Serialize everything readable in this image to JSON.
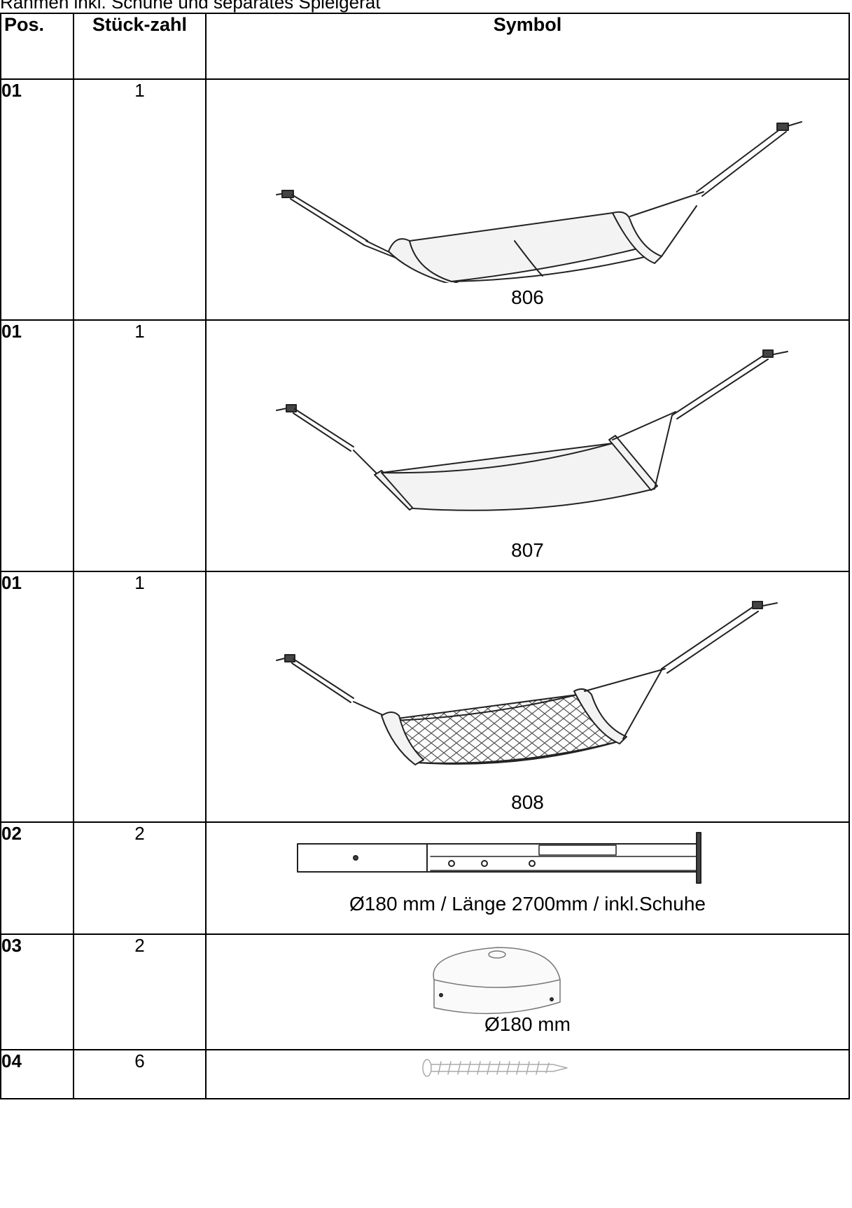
{
  "intro_text": "Rahmen inkl. Schuhe und separates Spielgerät",
  "table": {
    "headers": {
      "pos": "Pos.",
      "qty": "Stück-zahl",
      "symbol": "Symbol"
    },
    "rows": [
      {
        "pos": "01",
        "qty": "1",
        "label": "806",
        "icon": "hammock-fabric-drawing"
      },
      {
        "pos": "01",
        "qty": "1",
        "label": "807",
        "icon": "hammock-bar-drawing"
      },
      {
        "pos": "01",
        "qty": "1",
        "label": "808",
        "icon": "hammock-net-drawing"
      },
      {
        "pos": "02",
        "qty": "2",
        "label": "Ø180 mm / Länge 2700mm / inkl.Schuhe",
        "icon": "post-with-shoe-drawing"
      },
      {
        "pos": "03",
        "qty": "2",
        "label": "Ø180 mm",
        "icon": "post-cap-drawing"
      },
      {
        "pos": "04",
        "qty": "6",
        "label": "",
        "icon": "screw-drawing"
      }
    ]
  }
}
